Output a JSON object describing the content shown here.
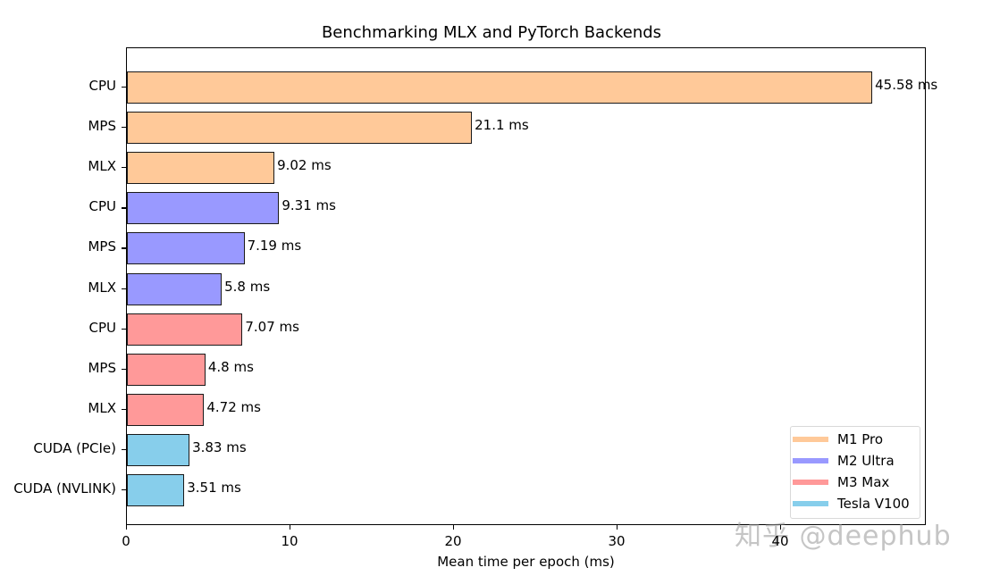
{
  "chart_data": {
    "type": "bar",
    "orientation": "horizontal",
    "title": "Benchmarking MLX and PyTorch Backends",
    "xlabel": "Mean time per epoch (ms)",
    "ylabel": "",
    "xlim": [
      0,
      49
    ],
    "xticks": [
      0,
      10,
      20,
      30,
      40
    ],
    "grid": false,
    "legend_position": "lower right",
    "categories": [
      "CPU",
      "MPS",
      "MLX",
      "CPU",
      "MPS",
      "MLX",
      "CPU",
      "MPS",
      "MLX",
      "CUDA (PCIe)",
      "CUDA (NVLINK)"
    ],
    "values": [
      45.58,
      21.1,
      9.02,
      9.31,
      7.19,
      5.8,
      7.07,
      4.8,
      4.72,
      3.83,
      3.51
    ],
    "value_labels": [
      "45.58 ms",
      "21.1 ms",
      "9.02 ms",
      "9.31 ms",
      "7.19 ms",
      "5.8 ms",
      "7.07 ms",
      "4.8 ms",
      "4.72 ms",
      "3.83 ms",
      "3.51 ms"
    ],
    "groups": [
      "M1 Pro",
      "M1 Pro",
      "M1 Pro",
      "M2 Ultra",
      "M2 Ultra",
      "M2 Ultra",
      "M3 Max",
      "M3 Max",
      "M3 Max",
      "Tesla V100",
      "Tesla V100"
    ],
    "series": [
      {
        "name": "M1 Pro",
        "color": "#ffc999",
        "categories": [
          "CPU",
          "MPS",
          "MLX"
        ],
        "values": [
          45.58,
          21.1,
          9.02
        ]
      },
      {
        "name": "M2 Ultra",
        "color": "#9999ff",
        "categories": [
          "CPU",
          "MPS",
          "MLX"
        ],
        "values": [
          9.31,
          7.19,
          5.8
        ]
      },
      {
        "name": "M3 Max",
        "color": "#ff9999",
        "categories": [
          "CPU",
          "MPS",
          "MLX"
        ],
        "values": [
          7.07,
          4.8,
          4.72
        ]
      },
      {
        "name": "Tesla V100",
        "color": "#87ceeb",
        "categories": [
          "CUDA (PCIe)",
          "CUDA (NVLINK)"
        ],
        "values": [
          3.83,
          3.51
        ]
      }
    ]
  },
  "legend": [
    {
      "label": "M1 Pro",
      "color": "#ffc999"
    },
    {
      "label": "M2 Ultra",
      "color": "#9999ff"
    },
    {
      "label": "M3 Max",
      "color": "#ff9999"
    },
    {
      "label": "Tesla V100",
      "color": "#87ceeb"
    }
  ],
  "watermark": "知乎 @deephub"
}
